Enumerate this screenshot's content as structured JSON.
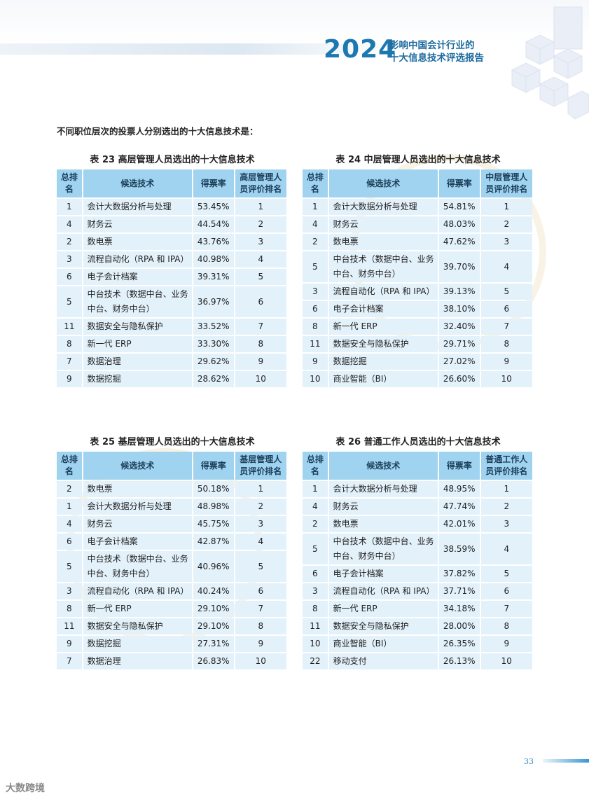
{
  "header": {
    "year": "2024",
    "subtitle_line1": "影响中国会计行业的",
    "subtitle_line2": "十大信息技术评选报告"
  },
  "intro": "不同职位层次的投票人分别选出的十大信息技术是：",
  "tables": [
    {
      "caption": "表 23 高层管理人员选出的十大信息技术",
      "headers": [
        "总排名",
        "候选技术",
        "得票率",
        "高层管理人员评价排名"
      ],
      "rows": [
        [
          "1",
          "会计大数据分析与处理",
          "53.45%",
          "1"
        ],
        [
          "4",
          "财务云",
          "44.54%",
          "2"
        ],
        [
          "2",
          "数电票",
          "43.76%",
          "3"
        ],
        [
          "3",
          "流程自动化（RPA 和 IPA）",
          "40.98%",
          "4"
        ],
        [
          "6",
          "电子会计档案",
          "39.31%",
          "5"
        ],
        [
          "5",
          "中台技术（数据中台、业务中台、财务中台）",
          "36.97%",
          "6"
        ],
        [
          "11",
          "数据安全与隐私保护",
          "33.52%",
          "7"
        ],
        [
          "8",
          "新一代 ERP",
          "33.30%",
          "8"
        ],
        [
          "7",
          "数据治理",
          "29.62%",
          "9"
        ],
        [
          "9",
          "数据挖掘",
          "28.62%",
          "10"
        ]
      ]
    },
    {
      "caption": "表 24 中层管理人员选出的十大信息技术",
      "headers": [
        "总排名",
        "候选技术",
        "得票率",
        "中层管理人员评价排名"
      ],
      "rows": [
        [
          "1",
          "会计大数据分析与处理",
          "54.81%",
          "1"
        ],
        [
          "4",
          "财务云",
          "48.03%",
          "2"
        ],
        [
          "2",
          "数电票",
          "47.62%",
          "3"
        ],
        [
          "5",
          "中台技术（数据中台、业务中台、财务中台）",
          "39.70%",
          "4"
        ],
        [
          "3",
          "流程自动化（RPA 和 IPA）",
          "39.13%",
          "5"
        ],
        [
          "6",
          "电子会计档案",
          "38.10%",
          "6"
        ],
        [
          "8",
          "新一代 ERP",
          "32.40%",
          "7"
        ],
        [
          "11",
          "数据安全与隐私保护",
          "29.71%",
          "8"
        ],
        [
          "9",
          "数据挖掘",
          "27.02%",
          "9"
        ],
        [
          "10",
          "商业智能（BI）",
          "26.60%",
          "10"
        ]
      ]
    },
    {
      "caption": "表 25 基层管理人员选出的十大信息技术",
      "headers": [
        "总排名",
        "候选技术",
        "得票率",
        "基层管理人员评价排名"
      ],
      "rows": [
        [
          "2",
          "数电票",
          "50.18%",
          "1"
        ],
        [
          "1",
          "会计大数据分析与处理",
          "48.98%",
          "2"
        ],
        [
          "4",
          "财务云",
          "45.75%",
          "3"
        ],
        [
          "6",
          "电子会计档案",
          "42.87%",
          "4"
        ],
        [
          "5",
          "中台技术（数据中台、业务中台、财务中台）",
          "40.96%",
          "5"
        ],
        [
          "3",
          "流程自动化（RPA 和 IPA）",
          "40.24%",
          "6"
        ],
        [
          "8",
          "新一代 ERP",
          "29.10%",
          "7"
        ],
        [
          "11",
          "数据安全与隐私保护",
          "29.10%",
          "8"
        ],
        [
          "9",
          "数据挖掘",
          "27.31%",
          "9"
        ],
        [
          "7",
          "数据治理",
          "26.83%",
          "10"
        ]
      ]
    },
    {
      "caption": "表 26 普通工作人员选出的十大信息技术",
      "headers": [
        "总排名",
        "候选技术",
        "得票率",
        "普通工作人员评价排名"
      ],
      "rows": [
        [
          "1",
          "会计大数据分析与处理",
          "48.95%",
          "1"
        ],
        [
          "4",
          "财务云",
          "47.74%",
          "2"
        ],
        [
          "2",
          "数电票",
          "42.01%",
          "3"
        ],
        [
          "5",
          "中台技术（数据中台、业务中台、财务中台）",
          "38.59%",
          "4"
        ],
        [
          "6",
          "电子会计档案",
          "37.82%",
          "5"
        ],
        [
          "3",
          "流程自动化（RPA 和 IPA）",
          "37.71%",
          "6"
        ],
        [
          "8",
          "新一代 ERP",
          "34.18%",
          "7"
        ],
        [
          "11",
          "数据安全与隐私保护",
          "28.00%",
          "8"
        ],
        [
          "10",
          "商业智能（BI）",
          "26.35%",
          "9"
        ],
        [
          "22",
          "移动支付",
          "26.13%",
          "10"
        ]
      ]
    }
  ],
  "footer": {
    "page_number": "33",
    "watermark": "大数跨境"
  }
}
